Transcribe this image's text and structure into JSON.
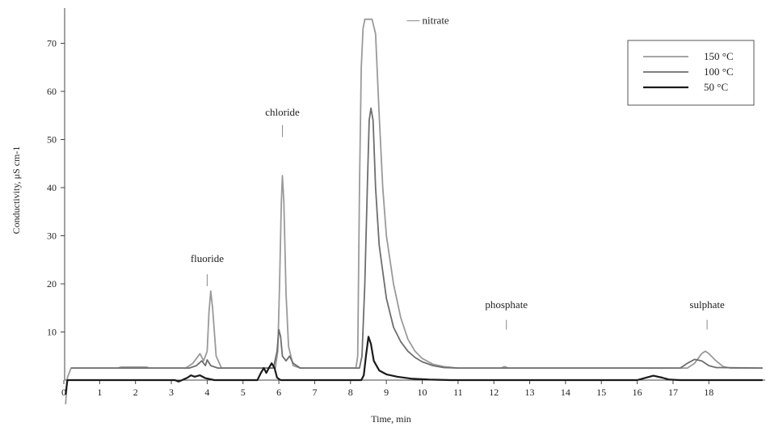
{
  "chart_data": {
    "type": "line",
    "title": "",
    "xlabel": "Time, min",
    "ylabel": "Conductivity, μS cm-1",
    "xlim": [
      0,
      19.5
    ],
    "ylim": [
      0,
      77
    ],
    "xticks": [
      0,
      1,
      2,
      3,
      4,
      5,
      6,
      7,
      8,
      9,
      10,
      11,
      12,
      13,
      14,
      15,
      16,
      17,
      18
    ],
    "xtick_labels": [
      "0",
      "1",
      "2",
      "3",
      "4",
      "5",
      "6",
      "7",
      "8",
      "9",
      "10",
      "11",
      "12",
      "13",
      "14",
      "15",
      "16",
      "17",
      "18"
    ],
    "yticks": [
      10,
      20,
      30,
      40,
      50,
      60,
      70
    ],
    "ytick_labels": [
      "10",
      "20",
      "30",
      "40",
      "50",
      "60",
      "70"
    ],
    "grid": false,
    "legend_position": "top-right",
    "series": [
      {
        "name": "150 °C",
        "color": "#9a9a9a",
        "points": [
          [
            0.05,
            -5
          ],
          [
            0.1,
            0.5
          ],
          [
            0.2,
            2.5
          ],
          [
            1.5,
            2.5
          ],
          [
            1.6,
            2.7
          ],
          [
            2.3,
            2.7
          ],
          [
            2.4,
            2.5
          ],
          [
            3.4,
            2.5
          ],
          [
            3.6,
            3.5
          ],
          [
            3.8,
            5.5
          ],
          [
            3.9,
            4.0
          ],
          [
            4.0,
            6.0
          ],
          [
            4.05,
            14.0
          ],
          [
            4.1,
            18.5
          ],
          [
            4.15,
            15.0
          ],
          [
            4.25,
            5.0
          ],
          [
            4.4,
            2.5
          ],
          [
            5.9,
            2.5
          ],
          [
            5.97,
            6.0
          ],
          [
            6.02,
            20.0
          ],
          [
            6.07,
            37.0
          ],
          [
            6.1,
            42.5
          ],
          [
            6.14,
            37.0
          ],
          [
            6.2,
            18.0
          ],
          [
            6.27,
            7.0
          ],
          [
            6.4,
            3.0
          ],
          [
            6.6,
            2.5
          ],
          [
            8.15,
            2.5
          ],
          [
            8.2,
            5.0
          ],
          [
            8.25,
            40.0
          ],
          [
            8.3,
            65.0
          ],
          [
            8.35,
            73.0
          ],
          [
            8.4,
            75.0
          ],
          [
            8.6,
            75.0
          ],
          [
            8.7,
            72.0
          ],
          [
            8.8,
            55.0
          ],
          [
            8.9,
            40.0
          ],
          [
            9.0,
            30.0
          ],
          [
            9.2,
            20.0
          ],
          [
            9.4,
            13.0
          ],
          [
            9.6,
            8.5
          ],
          [
            9.8,
            6.0
          ],
          [
            10.0,
            4.5
          ],
          [
            10.3,
            3.3
          ],
          [
            10.6,
            2.8
          ],
          [
            11.0,
            2.5
          ],
          [
            12.2,
            2.5
          ],
          [
            12.3,
            2.8
          ],
          [
            12.4,
            2.5
          ],
          [
            17.4,
            2.5
          ],
          [
            17.6,
            3.5
          ],
          [
            17.8,
            5.5
          ],
          [
            17.9,
            6.0
          ],
          [
            18.0,
            5.5
          ],
          [
            18.2,
            4.0
          ],
          [
            18.4,
            2.8
          ],
          [
            18.6,
            2.5
          ],
          [
            19.5,
            2.5
          ]
        ]
      },
      {
        "name": "100 °C",
        "color": "#6e6e6e",
        "points": [
          [
            0.2,
            2.5
          ],
          [
            3.5,
            2.5
          ],
          [
            3.7,
            3.0
          ],
          [
            3.85,
            4.0
          ],
          [
            3.95,
            3.0
          ],
          [
            4.0,
            4.2
          ],
          [
            4.1,
            3.0
          ],
          [
            4.3,
            2.5
          ],
          [
            5.85,
            2.5
          ],
          [
            5.95,
            6.0
          ],
          [
            6.0,
            10.5
          ],
          [
            6.05,
            9.0
          ],
          [
            6.1,
            5.0
          ],
          [
            6.2,
            4.0
          ],
          [
            6.3,
            5.0
          ],
          [
            6.4,
            3.5
          ],
          [
            6.6,
            2.5
          ],
          [
            8.25,
            2.5
          ],
          [
            8.32,
            5.0
          ],
          [
            8.4,
            20.0
          ],
          [
            8.47,
            40.0
          ],
          [
            8.52,
            54.0
          ],
          [
            8.57,
            56.5
          ],
          [
            8.63,
            54.0
          ],
          [
            8.7,
            40.0
          ],
          [
            8.8,
            28.0
          ],
          [
            9.0,
            17.0
          ],
          [
            9.2,
            11.0
          ],
          [
            9.4,
            8.0
          ],
          [
            9.6,
            6.0
          ],
          [
            9.8,
            4.7
          ],
          [
            10.0,
            3.8
          ],
          [
            10.3,
            3.0
          ],
          [
            10.6,
            2.6
          ],
          [
            11.0,
            2.5
          ],
          [
            17.2,
            2.5
          ],
          [
            17.4,
            3.5
          ],
          [
            17.6,
            4.3
          ],
          [
            17.8,
            4.0
          ],
          [
            18.0,
            3.0
          ],
          [
            18.2,
            2.6
          ],
          [
            19.5,
            2.5
          ]
        ]
      },
      {
        "name": "50 °C",
        "color": "#1a1a1a",
        "points": [
          [
            0.05,
            -3
          ],
          [
            0.1,
            0.0
          ],
          [
            3.1,
            0.0
          ],
          [
            3.2,
            -0.3
          ],
          [
            3.3,
            0.0
          ],
          [
            3.45,
            0.5
          ],
          [
            3.55,
            1.0
          ],
          [
            3.65,
            0.7
          ],
          [
            3.8,
            1.0
          ],
          [
            3.95,
            0.4
          ],
          [
            4.2,
            0.0
          ],
          [
            5.4,
            0.0
          ],
          [
            5.5,
            1.5
          ],
          [
            5.58,
            2.5
          ],
          [
            5.65,
            1.5
          ],
          [
            5.72,
            2.5
          ],
          [
            5.8,
            3.5
          ],
          [
            5.88,
            2.5
          ],
          [
            5.95,
            0.5
          ],
          [
            6.05,
            0.0
          ],
          [
            8.3,
            0.0
          ],
          [
            8.37,
            1.0
          ],
          [
            8.43,
            5.0
          ],
          [
            8.5,
            9.0
          ],
          [
            8.57,
            7.5
          ],
          [
            8.65,
            4.0
          ],
          [
            8.8,
            2.0
          ],
          [
            9.0,
            1.2
          ],
          [
            9.3,
            0.7
          ],
          [
            9.7,
            0.3
          ],
          [
            10.2,
            0.1
          ],
          [
            10.8,
            0.0
          ],
          [
            16.0,
            0.0
          ],
          [
            16.2,
            0.4
          ],
          [
            16.45,
            0.9
          ],
          [
            16.7,
            0.5
          ],
          [
            16.9,
            0.1
          ],
          [
            17.2,
            0.0
          ],
          [
            19.5,
            0.0
          ]
        ]
      }
    ],
    "annotations": [
      {
        "label": "fluoride",
        "x": 4.0,
        "y_text": 24.5,
        "y_tick_top": 22.0,
        "y_tick_bottom": 19.5
      },
      {
        "label": "chloride",
        "x": 6.1,
        "y_text": 55.0,
        "y_tick_top": 53.0,
        "y_tick_bottom": 50.5
      },
      {
        "label": "phosphate",
        "x": 12.35,
        "y_text": 15.0,
        "y_tick_top": 12.5,
        "y_tick_bottom": 10.5
      },
      {
        "label": "sulphate",
        "x": 17.95,
        "y_text": 15.0,
        "y_tick_top": 12.5,
        "y_tick_bottom": 10.5
      },
      {
        "label": "nitrate",
        "x": 10.0,
        "y_text": 74.0,
        "y_tick_top": null,
        "y_tick_bottom": null,
        "inline_dash": true
      }
    ]
  }
}
